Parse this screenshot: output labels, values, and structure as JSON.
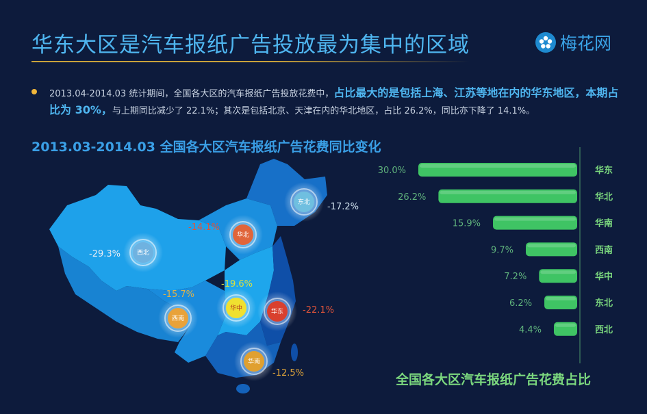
{
  "header": {
    "title": "华东大区是汽车报纸广告投放最为集中的区域",
    "logo_text": "梅花网"
  },
  "summary": {
    "text_1": "2013.04-2014.03 统计期间，全国各大区的汽车报纸广告投放花费中，",
    "highlight": "占比最大的是包括上海、江苏等地在内的华东地区，本期占比为 30%，",
    "text_2": "与上期同比减少了 22.1%；其次是包括北京、天津在内的华北地区，占比 26.2%，同比亦下降了 14.1%。"
  },
  "colors": {
    "title": "#4fb6f0",
    "bar": "#3fc464",
    "bar_label": "#7bd77e",
    "negative": "#e0543a"
  },
  "chart_data": [
    {
      "type": "map",
      "title": "2013.03-2014.03 全国各大区汽车报纸广告花费同比变化",
      "regions": [
        {
          "name": "西北",
          "change": "-29.3%",
          "marker_color": "#6fb2e0"
        },
        {
          "name": "华北",
          "change": "-14.1%",
          "marker_color": "#e0653a"
        },
        {
          "name": "东北",
          "change": "-17.2%",
          "marker_color": "#6fbfe0"
        },
        {
          "name": "华中",
          "change": "-19.6%",
          "marker_color": "#f0e030"
        },
        {
          "name": "西南",
          "change": "-15.7%",
          "marker_color": "#e8a23a"
        },
        {
          "name": "华东",
          "change": "-22.1%",
          "marker_color": "#d9402e"
        },
        {
          "name": "华南",
          "change": "-12.5%",
          "marker_color": "#e0a030"
        }
      ]
    },
    {
      "type": "bar",
      "title": "全国各大区汽车报纸广告花费占比",
      "categories": [
        "华东",
        "华北",
        "华南",
        "西南",
        "华中",
        "东北",
        "西北"
      ],
      "values": [
        30.0,
        26.2,
        15.9,
        9.7,
        7.2,
        6.2,
        4.4
      ],
      "value_labels": [
        "30.0%",
        "26.2%",
        "15.9%",
        "9.7%",
        "7.2%",
        "6.2%",
        "4.4%"
      ],
      "orientation": "horizontal-right-aligned",
      "xlim": [
        0,
        30
      ]
    }
  ]
}
